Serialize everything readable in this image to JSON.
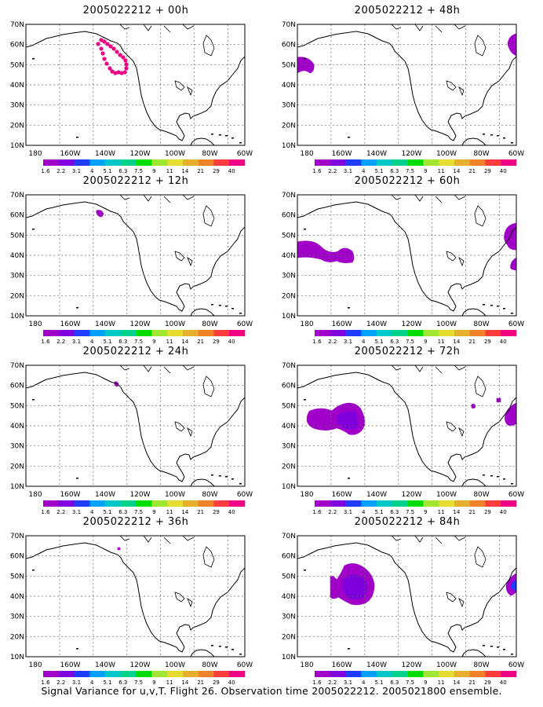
{
  "caption": "Signal Variance for u,v,T. Flight 26. Observation time 2005022212. 2005021800 ensemble.",
  "lat_labels": [
    "70N",
    "60N",
    "50N",
    "40N",
    "30N",
    "20N",
    "10N"
  ],
  "lon_labels": [
    "180",
    "160W",
    "140W",
    "120W",
    "100W",
    "80W",
    "60W"
  ],
  "colorbar": {
    "labels": [
      "1.6",
      "2.2",
      "3.1",
      "4",
      "5.1",
      "6.3",
      "7.5",
      "9",
      "11",
      "14",
      "21",
      "29",
      "40"
    ],
    "colors": [
      "#a000c8",
      "#7f00dc",
      "#1e3cff",
      "#00a0ff",
      "#00c8c8",
      "#00d28c",
      "#00dc00",
      "#a0e632",
      "#e6dc32",
      "#e6af2d",
      "#f08228",
      "#fa3c3c",
      "#f00082"
    ]
  },
  "panels": [
    {
      "title": "2005022212 + 00h"
    },
    {
      "title": "2005022212 + 48h"
    },
    {
      "title": "2005022212 + 12h"
    },
    {
      "title": "2005022212 + 60h"
    },
    {
      "title": "2005022212 + 24h"
    },
    {
      "title": "2005022212 + 72h"
    },
    {
      "title": "2005022212 + 36h"
    },
    {
      "title": "2005022212 + 84h"
    }
  ]
}
